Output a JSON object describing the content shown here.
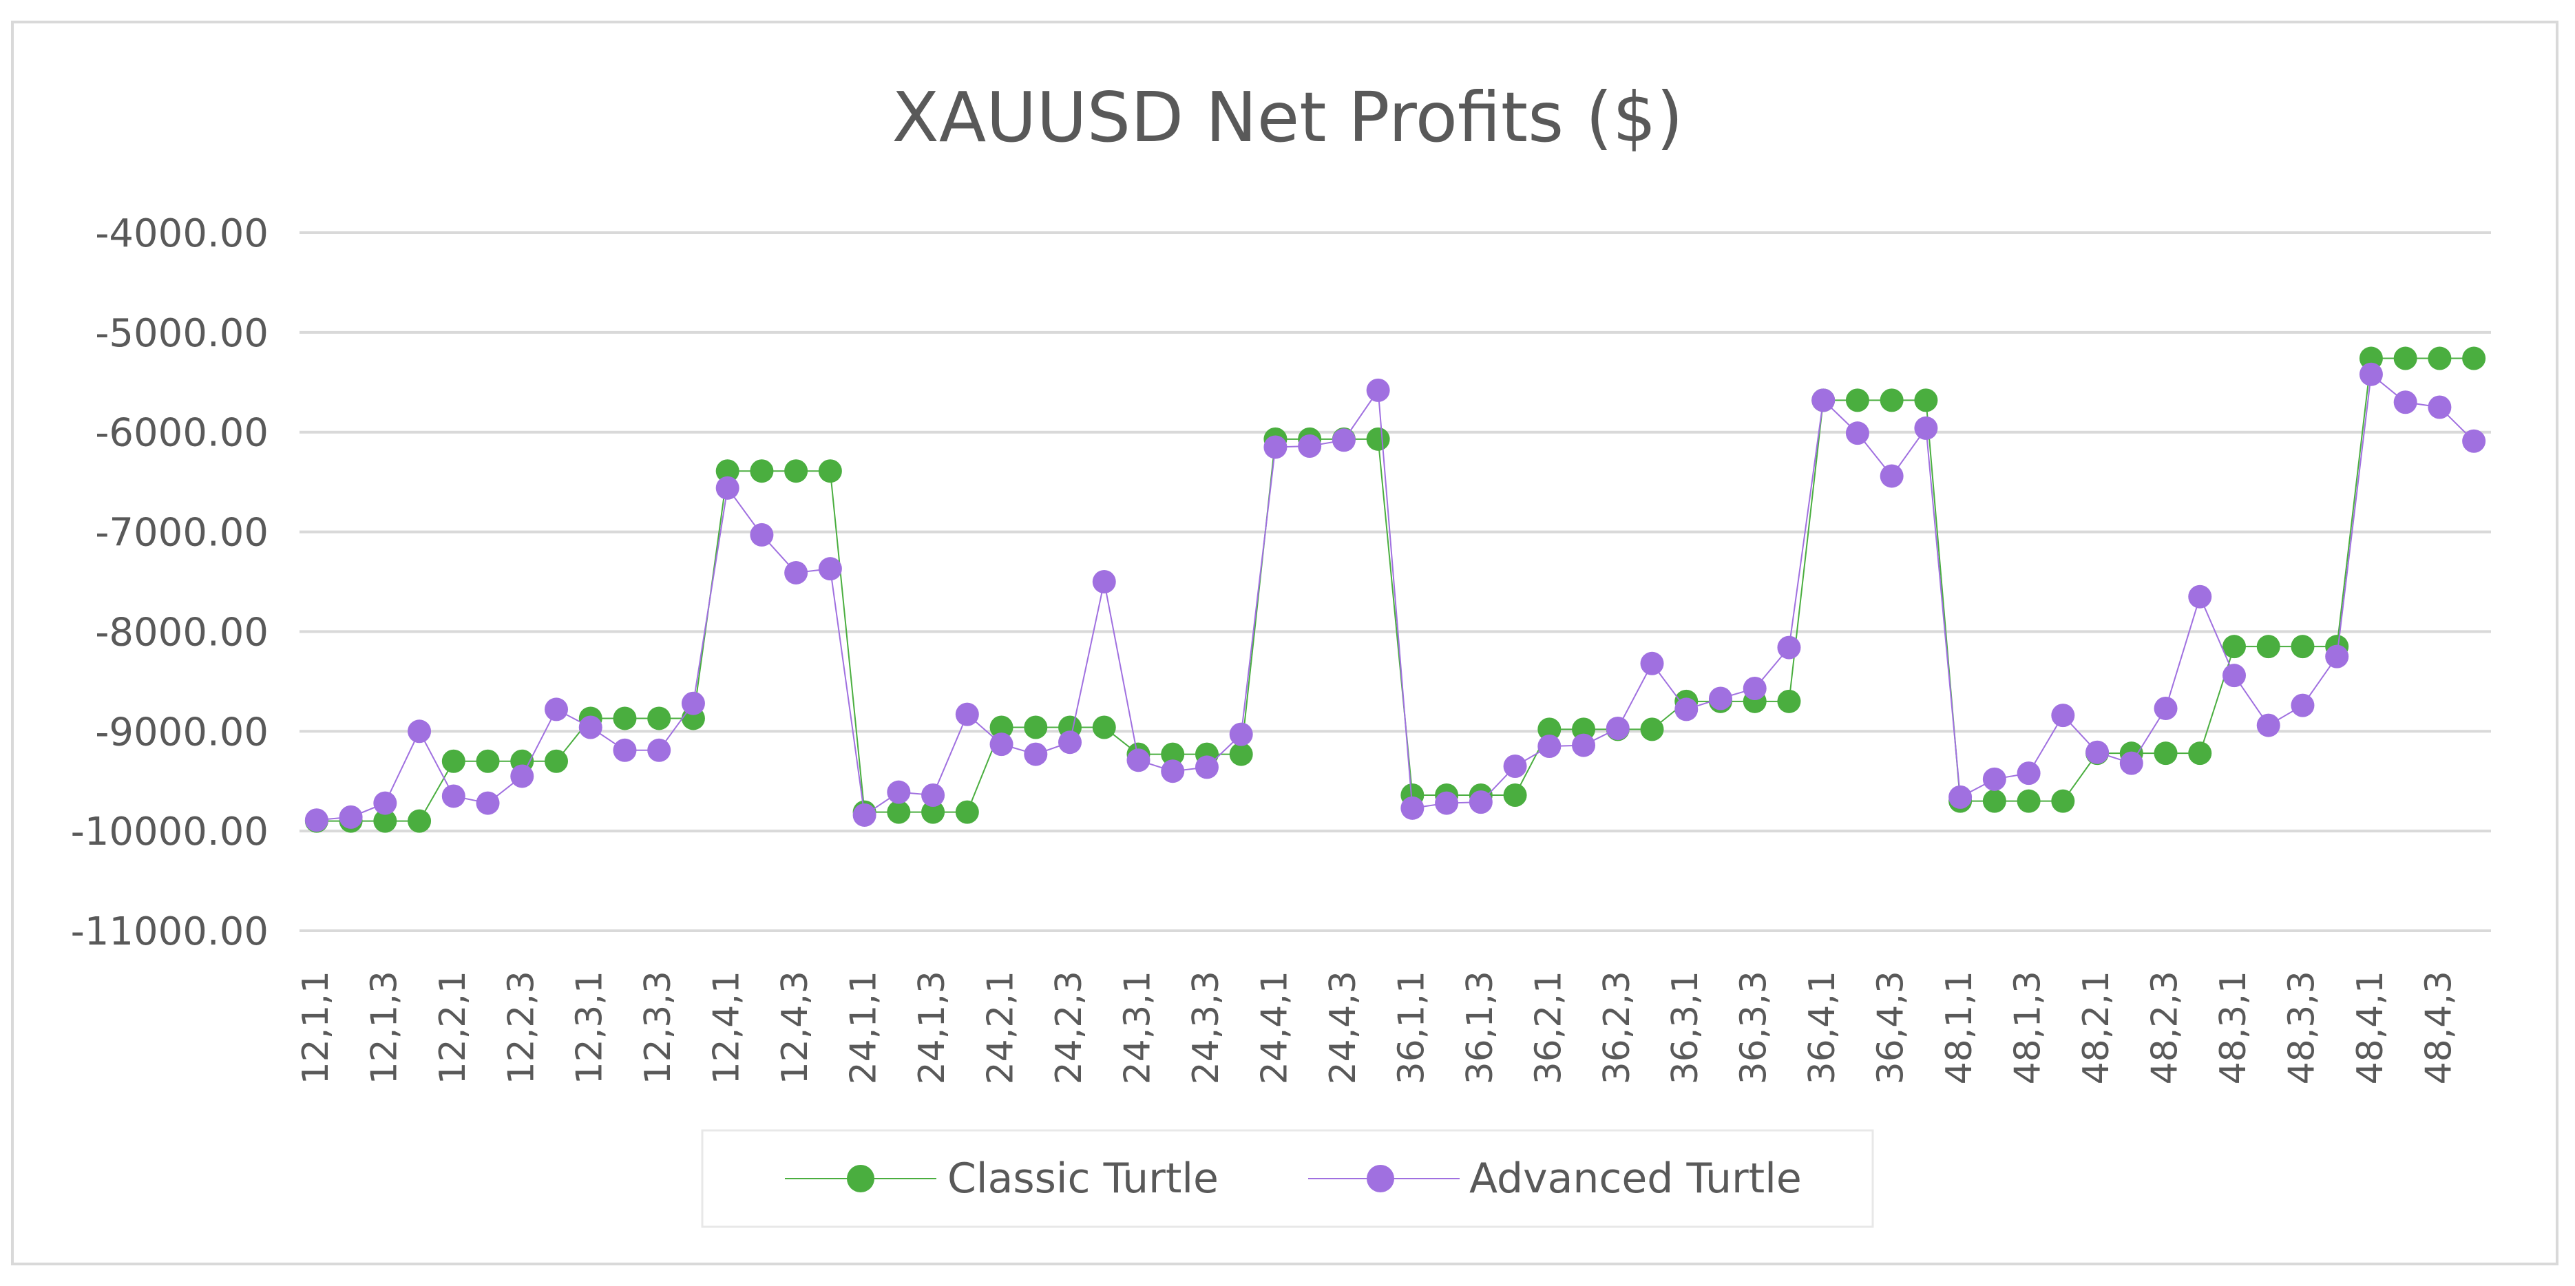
{
  "chart_data": {
    "type": "line",
    "title": "XAUUSD Net Profits ($)",
    "xlabel": "",
    "ylabel": "",
    "ylim": [
      -11000,
      -4000
    ],
    "yticks": [
      -4000,
      -5000,
      -6000,
      -7000,
      -8000,
      -9000,
      -10000,
      -11000
    ],
    "ytick_labels": [
      "-4000.00",
      "-5000.00",
      "-6000.00",
      "-7000.00",
      "-8000.00",
      "-9000.00",
      "-10000.00",
      "-11000.00"
    ],
    "grid": true,
    "legend_position": "bottom",
    "categories": [
      "12,1,1",
      "12,1,2",
      "12,1,3",
      "12,1,4",
      "12,2,1",
      "12,2,2",
      "12,2,3",
      "12,2,4",
      "12,3,1",
      "12,3,2",
      "12,3,3",
      "12,3,4",
      "12,4,1",
      "12,4,2",
      "12,4,3",
      "12,4,4",
      "24,1,1",
      "24,1,2",
      "24,1,3",
      "24,1,4",
      "24,2,1",
      "24,2,2",
      "24,2,3",
      "24,2,4",
      "24,3,1",
      "24,3,2",
      "24,3,3",
      "24,3,4",
      "24,4,1",
      "24,4,2",
      "24,4,3",
      "24,4,4",
      "36,1,1",
      "36,1,2",
      "36,1,3",
      "36,1,4",
      "36,2,1",
      "36,2,2",
      "36,2,3",
      "36,2,4",
      "36,3,1",
      "36,3,2",
      "36,3,3",
      "36,3,4",
      "36,4,1",
      "36,4,2",
      "36,4,3",
      "36,4,4",
      "48,1,1",
      "48,1,2",
      "48,1,3",
      "48,1,4",
      "48,2,1",
      "48,2,2",
      "48,2,3",
      "48,2,4",
      "48,3,1",
      "48,3,2",
      "48,3,3",
      "48,3,4",
      "48,4,1",
      "48,4,2",
      "48,4,3",
      "48,4,4"
    ],
    "visible_tick_labels": [
      "12,1,1",
      "12,1,3",
      "12,2,1",
      "12,2,3",
      "12,3,1",
      "12,3,3",
      "12,4,1",
      "12,4,3",
      "24,1,1",
      "24,1,3",
      "24,2,1",
      "24,2,3",
      "24,3,1",
      "24,3,3",
      "24,4,1",
      "24,4,3",
      "36,1,1",
      "36,1,3",
      "36,2,1",
      "36,2,3",
      "36,3,1",
      "36,3,3",
      "36,4,1",
      "36,4,3",
      "48,1,1",
      "48,1,3",
      "48,2,1",
      "48,2,3",
      "48,3,1",
      "48,3,3",
      "48,4,1",
      "48,4,3"
    ],
    "series": [
      {
        "name": "Classic Turtle",
        "color": "#4aae3f",
        "values": [
          -9900,
          -9900,
          -9900,
          -9900,
          -9300,
          -9300,
          -9300,
          -9300,
          -8870,
          -8870,
          -8870,
          -8870,
          -6390,
          -6390,
          -6390,
          -6390,
          -9810,
          -9810,
          -9810,
          -9810,
          -8960,
          -8960,
          -8960,
          -8960,
          -9230,
          -9230,
          -9230,
          -9230,
          -6070,
          -6070,
          -6070,
          -6070,
          -9640,
          -9640,
          -9640,
          -9640,
          -8980,
          -8980,
          -8980,
          -8980,
          -8700,
          -8700,
          -8700,
          -8700,
          -5680,
          -5680,
          -5680,
          -5680,
          -9700,
          -9700,
          -9700,
          -9700,
          -9220,
          -9220,
          -9220,
          -9220,
          -8150,
          -8150,
          -8150,
          -8150,
          -5260,
          -5260,
          -5260,
          -5260
        ]
      },
      {
        "name": "Advanced Turtle",
        "color": "#a070e0",
        "values": [
          -9890,
          -9860,
          -9720,
          -9000,
          -9650,
          -9720,
          -9450,
          -8780,
          -8960,
          -9190,
          -9190,
          -8720,
          -6560,
          -7030,
          -7410,
          -7370,
          -9840,
          -9610,
          -9640,
          -8830,
          -9130,
          -9230,
          -9110,
          -7500,
          -9290,
          -9400,
          -9360,
          -9030,
          -6150,
          -6140,
          -6080,
          -5580,
          -9770,
          -9720,
          -9710,
          -9350,
          -9150,
          -9140,
          -8970,
          -8320,
          -8780,
          -8670,
          -8570,
          -8160,
          -5680,
          -6010,
          -6440,
          -5960,
          -9660,
          -9480,
          -9420,
          -8840,
          -9210,
          -9320,
          -8770,
          -7650,
          -8440,
          -8940,
          -8740,
          -8250,
          -5420,
          -5700,
          -5750,
          -6090
        ]
      }
    ]
  }
}
